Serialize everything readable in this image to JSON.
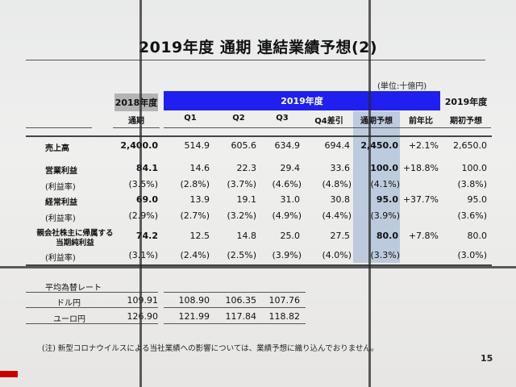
{
  "title": "2019年度 通期 連結業績予想(2)",
  "unit": "(単位:十億円)",
  "headers": {
    "y2018": "2018年度",
    "y2019": "2019年度",
    "y2019_initial": "2019年度"
  },
  "columns": [
    "通期",
    "Q1",
    "Q2",
    "Q3",
    "Q4差引",
    "通期予想",
    "前年比",
    "期初予想"
  ],
  "rows": [
    {
      "label": "売上高",
      "v": [
        "2,400.0",
        "514.9",
        "605.6",
        "634.9",
        "694.4",
        "2,450.0",
        "+2.1%",
        "2,650.0"
      ]
    },
    {
      "label": "営業利益",
      "v": [
        "84.1",
        "14.6",
        "22.3",
        "29.4",
        "33.6",
        "100.0",
        "+18.8%",
        "100.0"
      ]
    },
    {
      "label": "(利益率)",
      "v": [
        "(3.5%)",
        "(2.8%)",
        "(3.7%)",
        "(4.6%)",
        "(4.8%)",
        "(4.1%)",
        "",
        "(3.8%)"
      ]
    },
    {
      "label": "経常利益",
      "v": [
        "69.0",
        "13.9",
        "19.1",
        "31.0",
        "30.8",
        "95.0",
        "+37.7%",
        "95.0"
      ]
    },
    {
      "label": "(利益率)",
      "v": [
        "(2.9%)",
        "(2.7%)",
        "(3.2%)",
        "(4.9%)",
        "(4.4%)",
        "(3.9%)",
        "",
        "(3.6%)"
      ]
    },
    {
      "label": "親会社株主に帰属する",
      "label2": "当期純利益",
      "v": [
        "74.2",
        "12.5",
        "14.8",
        "25.0",
        "27.5",
        "80.0",
        "+7.8%",
        "80.0"
      ]
    },
    {
      "label": "(利益率)",
      "v": [
        "(3.1%)",
        "(2.4%)",
        "(2.5%)",
        "(3.9%)",
        "(4.0%)",
        "(3.3%)",
        "",
        "(3.0%)"
      ]
    }
  ],
  "fx": {
    "title": "平均為替レート",
    "rows": [
      {
        "label": "ドル円",
        "v": [
          "109.91",
          "108.90",
          "106.35",
          "107.76"
        ]
      },
      {
        "label": "ユーロ円",
        "v": [
          "126.90",
          "121.99",
          "117.84",
          "118.82"
        ]
      }
    ]
  },
  "note": "(注) 新型コロナウイルスによる当社業績への影響については、業績予想に織り込んでおりません。",
  "page": "15"
}
